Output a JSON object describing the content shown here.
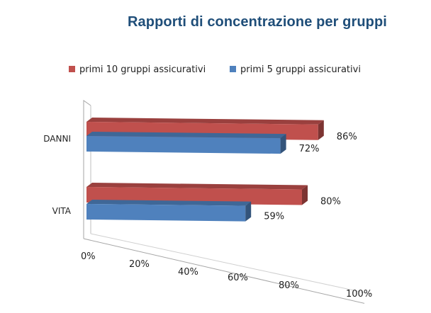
{
  "chart_data": {
    "type": "bar",
    "orientation": "horizontal",
    "title": "Rapporti di concentrazione per gruppi",
    "categories": [
      "DANNI",
      "VITA"
    ],
    "series": [
      {
        "name": "primi 10 gruppi assicurativi",
        "values": [
          86,
          80
        ],
        "labels": [
          "86%",
          "80%"
        ],
        "color": "#c0504d"
      },
      {
        "name": "primi 5 gruppi assicurativi",
        "values": [
          72,
          59
        ],
        "labels": [
          "72%",
          "59%"
        ],
        "color": "#4f81bd"
      }
    ],
    "xlim": [
      0,
      100
    ],
    "x_ticks": [
      "0%",
      "20%",
      "40%",
      "60%",
      "80%",
      "100%"
    ],
    "legend_position": "top",
    "style": "3d-perspective",
    "grid": false
  }
}
